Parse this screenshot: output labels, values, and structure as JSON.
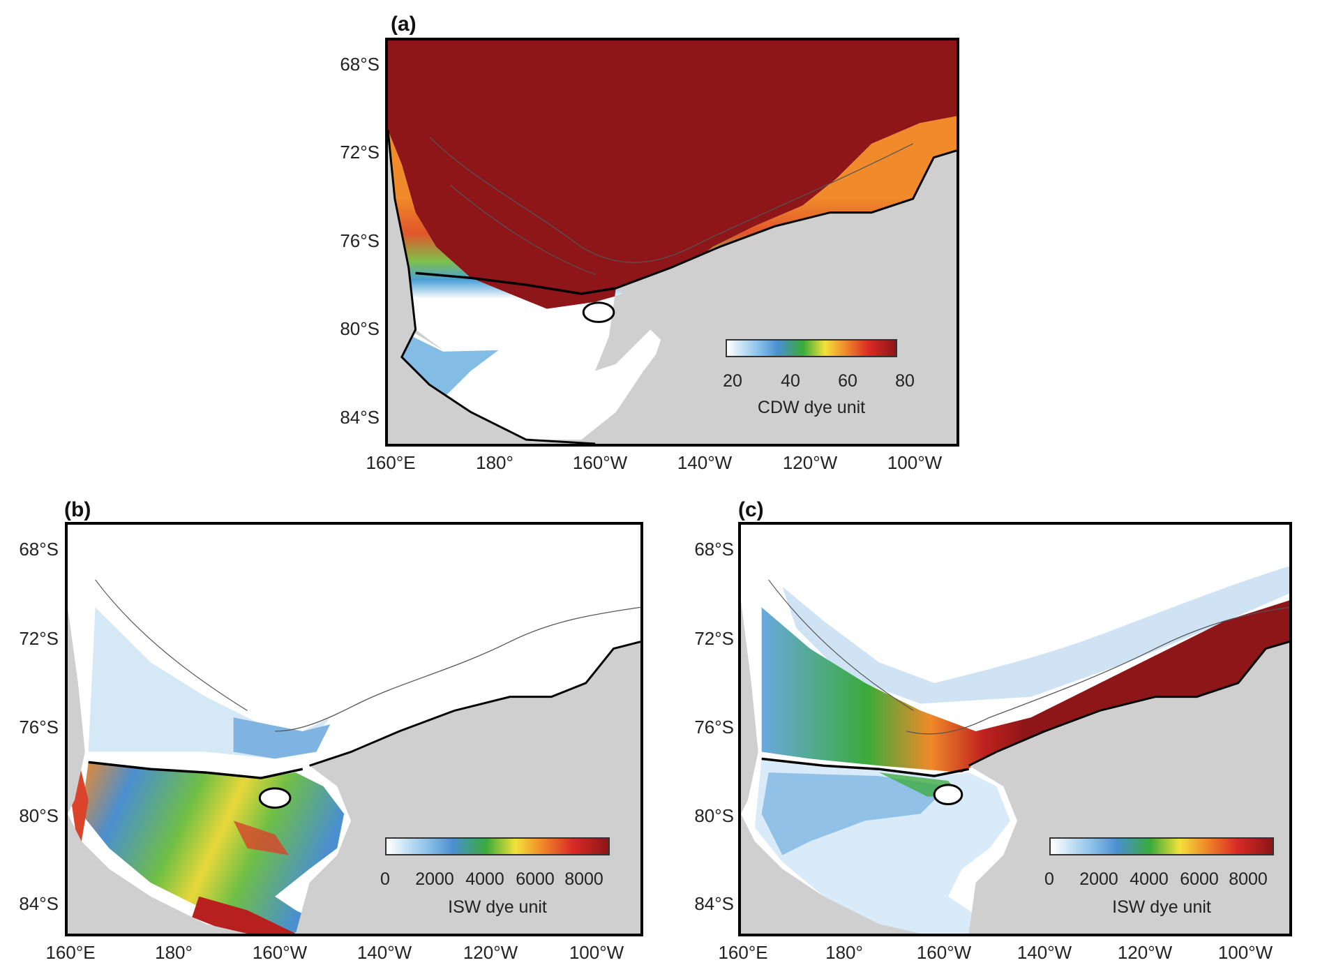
{
  "panels": [
    {
      "id": "a",
      "label": "(a)",
      "lat_labels": [
        "68°S",
        "72°S",
        "76°S",
        "80°S",
        "84°S"
      ],
      "lon_labels": [
        "160°E",
        "180°",
        "160°W",
        "140°W",
        "120°W",
        "100°W"
      ],
      "colorbar": {
        "ticks": [
          "20",
          "40",
          "60",
          "80"
        ],
        "title": "CDW dye unit",
        "range": [
          20,
          80
        ]
      },
      "colormap": "white-blue-green-yellow-orange-red-darkred"
    },
    {
      "id": "b",
      "label": "(b)",
      "lat_labels": [
        "68°S",
        "72°S",
        "76°S",
        "80°S",
        "84°S"
      ],
      "lon_labels": [
        "160°E",
        "180°",
        "160°W",
        "140°W",
        "120°W",
        "100°W"
      ],
      "colorbar": {
        "ticks": [
          "0",
          "2000",
          "4000",
          "6000",
          "8000"
        ],
        "title": "ISW dye unit",
        "range": [
          0,
          9000
        ]
      },
      "colormap": "white-blue-green-yellow-orange-red-darkred"
    },
    {
      "id": "c",
      "label": "(c)",
      "lat_labels": [
        "68°S",
        "72°S",
        "76°S",
        "80°S",
        "84°S"
      ],
      "lon_labels": [
        "160°E",
        "180°",
        "160°W",
        "140°W",
        "120°W",
        "100°W"
      ],
      "colorbar": {
        "ticks": [
          "0",
          "2000",
          "4000",
          "6000",
          "8000"
        ],
        "title": "ISW dye unit",
        "range": [
          0,
          9000
        ]
      },
      "colormap": "white-blue-green-yellow-orange-red-darkred"
    }
  ],
  "colors": {
    "land": "#cfcfcf",
    "dark_red": "#8e1518",
    "coast": "#000000",
    "contour": "#555555"
  }
}
